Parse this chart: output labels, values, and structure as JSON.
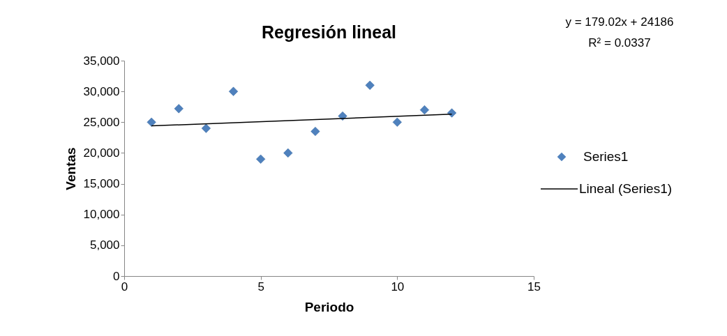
{
  "chart_data": {
    "type": "scatter",
    "title": "Regresión lineal",
    "xlabel": "Periodo",
    "ylabel": "Ventas",
    "xlim": [
      0,
      15
    ],
    "xticks": [
      0,
      5,
      10,
      15
    ],
    "ylim": [
      0,
      35000
    ],
    "yticks": [
      {
        "value": 0,
        "label": "0"
      },
      {
        "value": 5000,
        "label": "5,000"
      },
      {
        "value": 10000,
        "label": "10,000"
      },
      {
        "value": 15000,
        "label": "15,000"
      },
      {
        "value": 20000,
        "label": "20,000"
      },
      {
        "value": 25000,
        "label": "25,000"
      },
      {
        "value": 30000,
        "label": "30,000"
      },
      {
        "value": 35000,
        "label": "35,000"
      }
    ],
    "grid": false,
    "legend": "right",
    "x": [
      1,
      2,
      3,
      4,
      5,
      6,
      7,
      8,
      9,
      10,
      11,
      12
    ],
    "series": [
      {
        "name": "Series1",
        "marker": "diamond",
        "color": "#4f81bd",
        "values": [
          25000,
          27200,
          24000,
          30000,
          19000,
          20000,
          23500,
          26000,
          31000,
          25000,
          27000,
          26500
        ]
      },
      {
        "name": "Lineal (Series1)",
        "type": "line",
        "color": "#000000",
        "line_style": "solid",
        "marker": "none",
        "x": [
          1,
          12
        ],
        "values": [
          24400,
          26300
        ]
      }
    ],
    "annotations": [
      "y = 179.02x + 24186",
      "R² = 0.0337"
    ]
  }
}
